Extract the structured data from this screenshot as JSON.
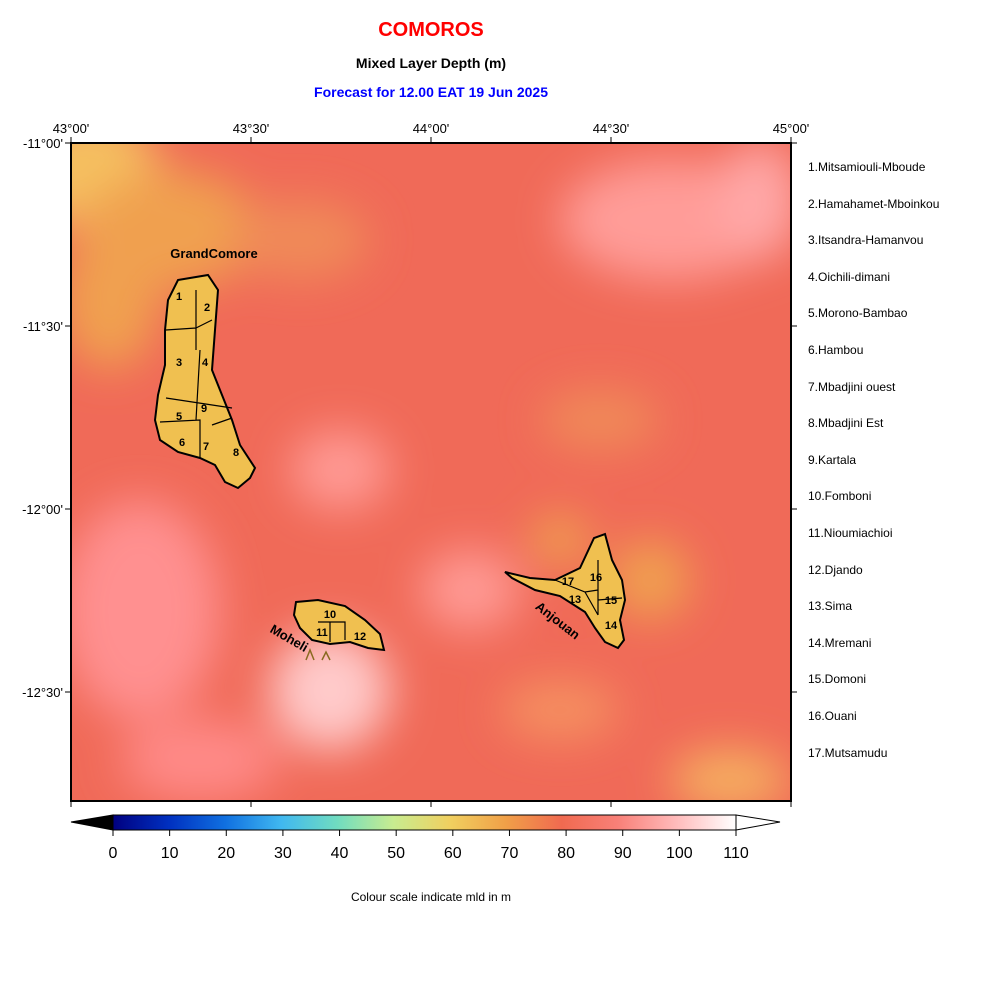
{
  "header": {
    "country": "COMOROS",
    "parameter": "Mixed Layer Depth (m)",
    "forecast": "Forecast for  12.00 EAT 19 Jun 2025"
  },
  "map": {
    "lon_ticks": [
      "43°00'",
      "43°30'",
      "44°00'",
      "44°30'",
      "45°00'"
    ],
    "lat_ticks": [
      "-11°00'",
      "-11°30'",
      "-12°00'",
      "-12°30'"
    ],
    "island_labels": [
      "GrandComore",
      "Moheli",
      "Anjouan"
    ],
    "island_fill": "#f0c050",
    "region_numbers": [
      "1",
      "2",
      "3",
      "4",
      "5",
      "6",
      "7",
      "8",
      "9",
      "10",
      "11",
      "12",
      "13",
      "14",
      "15",
      "16",
      "17"
    ]
  },
  "regions": [
    "1.Mitsamiouli-Mboude",
    "2.Hamahamet-Mboinkou",
    "3.Itsandra-Hamanvou",
    "4.Oichili-dimani",
    "5.Morono-Bambao",
    "6.Hambou",
    "7.Mbadjini ouest",
    "8.Mbadjini Est",
    "9.Kartala",
    "10.Fomboni",
    "11.Nioumiachioi",
    "12.Djando",
    "13.Sima",
    "14.Mremani",
    "15.Domoni",
    "16.Ouani",
    "17.Mutsamudu"
  ],
  "colorbar": {
    "ticks": [
      "0",
      "10",
      "20",
      "30",
      "40",
      "50",
      "60",
      "70",
      "80",
      "90",
      "100",
      "110"
    ],
    "range": [
      0,
      110
    ],
    "colors": [
      "#000080",
      "#0040d0",
      "#30a0e8",
      "#70d8d0",
      "#d0e880",
      "#f0c850",
      "#f08040",
      "#f06050",
      "#ff9090",
      "#ffd0d0",
      "#ffffff"
    ],
    "caption": "Colour scale indicate mld in m"
  },
  "field": {
    "background": "#f06a58",
    "dominant_range_m": [
      70,
      95
    ]
  }
}
